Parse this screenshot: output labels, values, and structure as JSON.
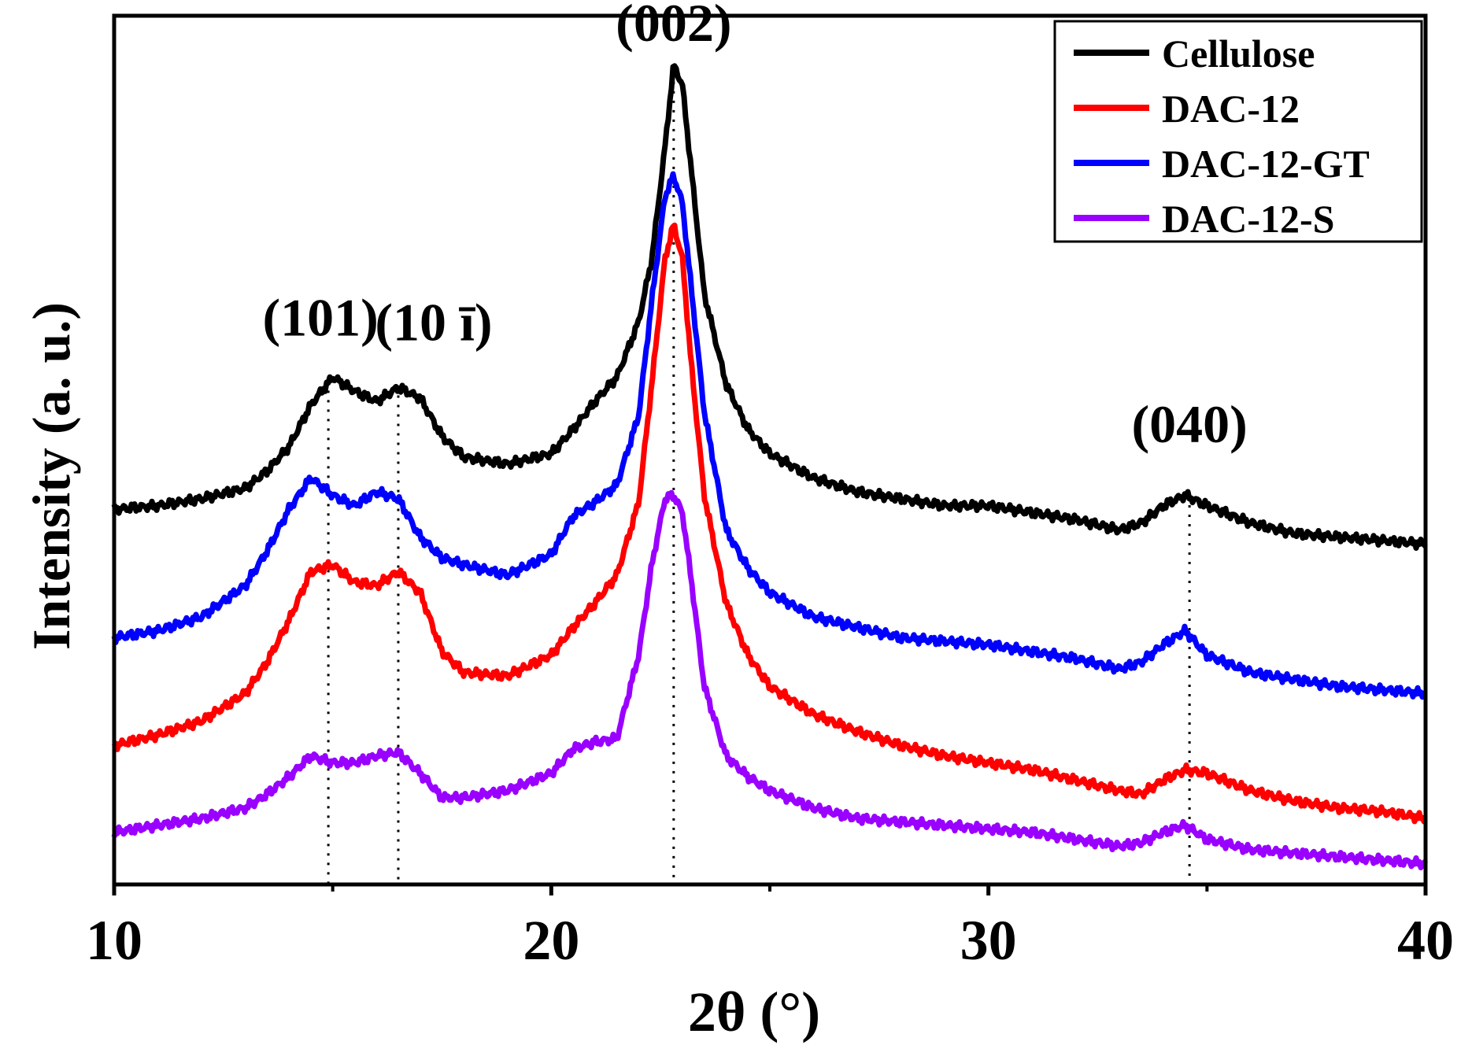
{
  "chart_data": {
    "type": "line",
    "xlabel": "2θ (°)",
    "ylabel": "Intensity (a. u.)",
    "xlim": [
      10,
      40
    ],
    "xticks": [
      10,
      20,
      30,
      40
    ],
    "xtick_labels": [
      "10",
      "20",
      "30",
      "40"
    ],
    "yticks_shown": false,
    "grid": false,
    "legend_position": "top-right",
    "series": [
      {
        "name": "Cellulose",
        "color": "#000000",
        "x": [
          10,
          11,
          12,
          13,
          13.5,
          14,
          14.5,
          15,
          15.5,
          16,
          16.5,
          17,
          17.5,
          18,
          19,
          20,
          20.5,
          21,
          21.5,
          22,
          22.3,
          22.6,
          22.8,
          23,
          23.2,
          23.5,
          24,
          24.5,
          25,
          26,
          27,
          28,
          29,
          30,
          31,
          32,
          33,
          33.5,
          34,
          34.5,
          35,
          36,
          37,
          38,
          39,
          40
        ],
        "y": [
          5.4,
          5.45,
          5.55,
          5.7,
          5.95,
          6.3,
          6.9,
          7.3,
          7.1,
          6.95,
          7.15,
          7.0,
          6.45,
          6.15,
          6.05,
          6.2,
          6.55,
          6.95,
          7.3,
          8.1,
          9.0,
          10.6,
          11.8,
          11.5,
          10.3,
          8.5,
          7.2,
          6.55,
          6.2,
          5.85,
          5.65,
          5.55,
          5.45,
          5.45,
          5.35,
          5.25,
          5.1,
          5.2,
          5.45,
          5.6,
          5.45,
          5.2,
          5.05,
          5.0,
          4.95,
          4.9
        ]
      },
      {
        "name": "DAC-12",
        "color": "#ff0000",
        "x": [
          10,
          11,
          12,
          13,
          13.5,
          14,
          14.5,
          15,
          15.5,
          16,
          16.5,
          17,
          17.5,
          18,
          19,
          20,
          20.5,
          21,
          21.5,
          22,
          22.3,
          22.6,
          22.8,
          23,
          23.2,
          23.5,
          24,
          24.5,
          25,
          26,
          27,
          28,
          29,
          30,
          31,
          32,
          33,
          33.5,
          34,
          34.5,
          35,
          36,
          37,
          38,
          39,
          40
        ],
        "y": [
          2.0,
          2.15,
          2.35,
          2.75,
          3.2,
          3.8,
          4.5,
          4.6,
          4.35,
          4.3,
          4.5,
          4.2,
          3.35,
          3.05,
          3.0,
          3.3,
          3.7,
          4.05,
          4.45,
          5.5,
          7.2,
          9.0,
          9.5,
          9.0,
          7.5,
          5.6,
          4.05,
          3.3,
          2.85,
          2.45,
          2.2,
          2.0,
          1.85,
          1.75,
          1.65,
          1.5,
          1.35,
          1.3,
          1.5,
          1.65,
          1.6,
          1.35,
          1.2,
          1.1,
          1.05,
          0.95
        ]
      },
      {
        "name": "DAC-12-GT",
        "color": "#0000ff",
        "x": [
          10,
          11,
          12,
          13,
          13.5,
          14,
          14.5,
          15,
          15.5,
          16,
          16.5,
          17,
          17.5,
          18,
          19,
          20,
          20.5,
          21,
          21.5,
          22,
          22.3,
          22.6,
          22.8,
          23,
          23.2,
          23.5,
          24,
          24.5,
          25,
          26,
          27,
          28,
          29,
          30,
          31,
          32,
          33,
          33.5,
          34,
          34.5,
          35,
          36,
          37,
          38,
          39,
          40
        ],
        "y": [
          3.55,
          3.65,
          3.85,
          4.3,
          4.8,
          5.4,
          5.85,
          5.6,
          5.45,
          5.65,
          5.55,
          5.0,
          4.7,
          4.6,
          4.45,
          4.75,
          5.3,
          5.5,
          5.75,
          6.75,
          8.4,
          9.9,
          10.2,
          9.8,
          8.6,
          6.8,
          5.1,
          4.55,
          4.2,
          3.85,
          3.7,
          3.55,
          3.5,
          3.45,
          3.35,
          3.25,
          3.1,
          3.2,
          3.45,
          3.65,
          3.3,
          3.05,
          2.95,
          2.85,
          2.8,
          2.75
        ]
      },
      {
        "name": "DAC-12-S",
        "color": "#9900ff",
        "x": [
          10,
          11,
          12,
          13,
          13.5,
          14,
          14.5,
          15,
          15.5,
          16,
          16.5,
          17,
          17.5,
          18,
          19,
          20,
          20.5,
          21,
          21.5,
          22,
          22.3,
          22.6,
          22.8,
          23,
          23.2,
          23.5,
          24,
          24.5,
          25,
          26,
          27,
          28,
          29,
          30,
          31,
          32,
          33,
          33.5,
          34,
          34.5,
          35,
          36,
          37,
          38,
          39,
          40
        ],
        "y": [
          0.75,
          0.85,
          0.95,
          1.1,
          1.3,
          1.55,
          1.85,
          1.75,
          1.75,
          1.85,
          1.9,
          1.6,
          1.25,
          1.25,
          1.35,
          1.6,
          1.95,
          2.05,
          2.1,
          3.3,
          4.6,
          5.55,
          5.6,
          5.35,
          4.4,
          2.85,
          1.85,
          1.55,
          1.35,
          1.1,
          0.95,
          0.9,
          0.85,
          0.8,
          0.75,
          0.65,
          0.55,
          0.6,
          0.75,
          0.85,
          0.65,
          0.5,
          0.45,
          0.4,
          0.35,
          0.3
        ]
      }
    ],
    "annotations": [
      {
        "text": "(101)",
        "x": 14.9
      },
      {
        "text": "(10 ī)",
        "x": 16.5
      },
      {
        "text": "(002)",
        "x": 22.8
      },
      {
        "text": "(040)",
        "x": 34.6
      }
    ]
  }
}
